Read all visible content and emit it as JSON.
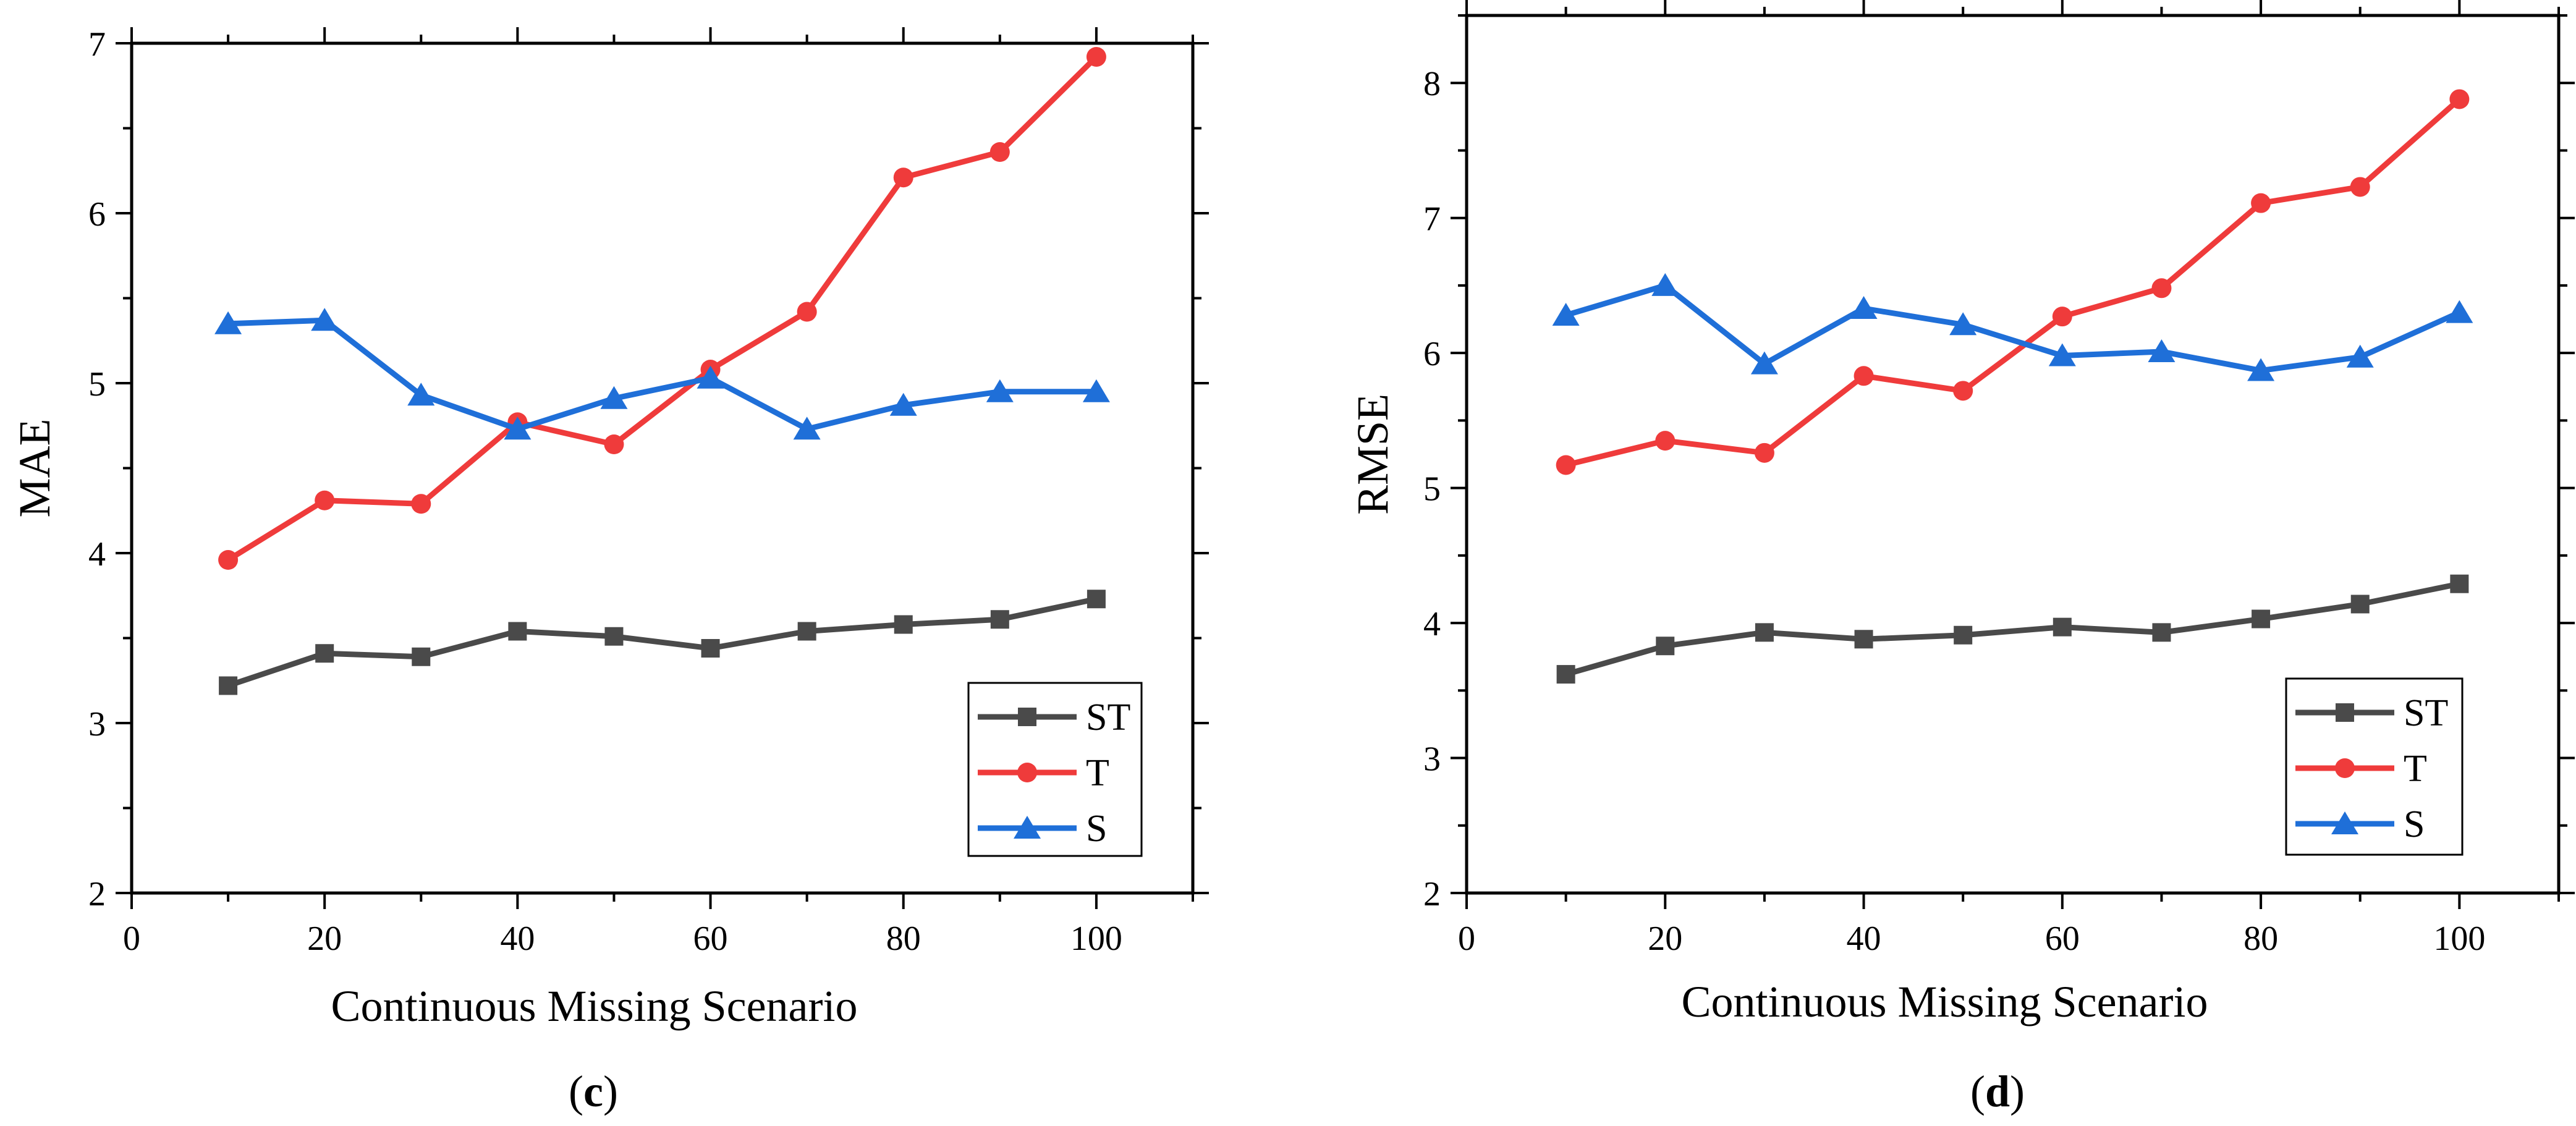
{
  "panels": [
    {
      "caption_letter": "c",
      "chart_data": {
        "type": "line",
        "xlabel": "Continuous Missing Scenario",
        "ylabel": "MAE",
        "xlim": [
          0,
          110
        ],
        "ylim": [
          2,
          7
        ],
        "xticks": [
          0,
          20,
          40,
          60,
          80,
          100
        ],
        "yticks": [
          2,
          3,
          4,
          5,
          6,
          7
        ],
        "grid": false,
        "legend_position": "bottom-right",
        "x": [
          10,
          20,
          30,
          40,
          50,
          60,
          70,
          80,
          90,
          100
        ],
        "series": [
          {
            "name": "ST",
            "marker": "square",
            "color": "#4a4a4a",
            "values": [
              3.22,
              3.41,
              3.39,
              3.54,
              3.51,
              3.44,
              3.54,
              3.58,
              3.61,
              3.73
            ]
          },
          {
            "name": "T",
            "marker": "circle",
            "color": "#ef3b3b",
            "values": [
              3.96,
              4.31,
              4.29,
              4.77,
              4.64,
              5.08,
              5.42,
              6.21,
              6.36,
              6.92
            ]
          },
          {
            "name": "S",
            "marker": "triangle",
            "color": "#1f6fd8",
            "values": [
              5.35,
              5.37,
              4.93,
              4.73,
              4.91,
              5.03,
              4.73,
              4.87,
              4.95,
              4.95
            ]
          }
        ]
      }
    },
    {
      "caption_letter": "d",
      "chart_data": {
        "type": "line",
        "xlabel": "Continuous Missing Scenario",
        "ylabel": "RMSE",
        "xlim": [
          0,
          110
        ],
        "ylim": [
          2,
          8.5
        ],
        "xticks": [
          0,
          20,
          40,
          60,
          80,
          100
        ],
        "yticks": [
          2,
          3,
          4,
          5,
          6,
          7,
          8
        ],
        "grid": false,
        "legend_position": "bottom-right",
        "x": [
          10,
          20,
          30,
          40,
          50,
          60,
          70,
          80,
          90,
          100
        ],
        "series": [
          {
            "name": "ST",
            "marker": "square",
            "color": "#4a4a4a",
            "values": [
              3.62,
              3.83,
              3.93,
              3.88,
              3.91,
              3.97,
              3.93,
              4.03,
              4.14,
              4.29
            ]
          },
          {
            "name": "T",
            "marker": "circle",
            "color": "#ef3b3b",
            "values": [
              5.17,
              5.35,
              5.26,
              5.83,
              5.72,
              6.27,
              6.48,
              7.11,
              7.23,
              7.88
            ]
          },
          {
            "name": "S",
            "marker": "triangle",
            "color": "#1f6fd8",
            "values": [
              6.28,
              6.5,
              5.92,
              6.33,
              6.21,
              5.98,
              6.01,
              5.87,
              5.97,
              6.3
            ]
          }
        ]
      }
    }
  ]
}
